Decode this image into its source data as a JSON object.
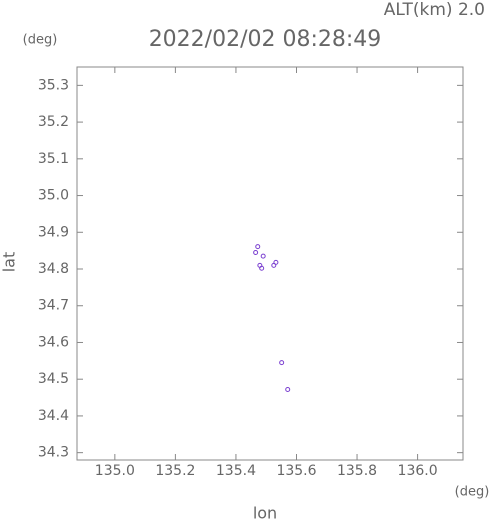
{
  "chart_data": {
    "type": "scatter",
    "title": "2022/02/02 08:28:49",
    "subtitle": "ALT(km) 2.0",
    "x_label": "lon",
    "x_unit": "(deg)",
    "y_label": "lat",
    "y_unit": "(deg)",
    "x": [
      135.465,
      135.472,
      135.479,
      135.485,
      135.49,
      135.525,
      135.532,
      135.551,
      135.571
    ],
    "y": [
      34.845,
      34.861,
      34.81,
      34.802,
      34.835,
      34.81,
      34.818,
      34.545,
      34.472
    ],
    "color": "#7a3fd0",
    "xlim": [
      134.875,
      136.15
    ],
    "ylim": [
      34.28,
      35.35
    ],
    "xticks": [
      {
        "value": 135.0,
        "label": "135.0"
      },
      135.2,
      135.4,
      135.6,
      135.8,
      {
        "value": 136.0,
        "label": "136.0"
      }
    ],
    "yticks": [
      34.3,
      34.4,
      34.5,
      34.6,
      34.7,
      34.8,
      34.9,
      {
        "value": 35.0,
        "label": "35.0"
      },
      35.1,
      35.2,
      35.3
    ]
  }
}
